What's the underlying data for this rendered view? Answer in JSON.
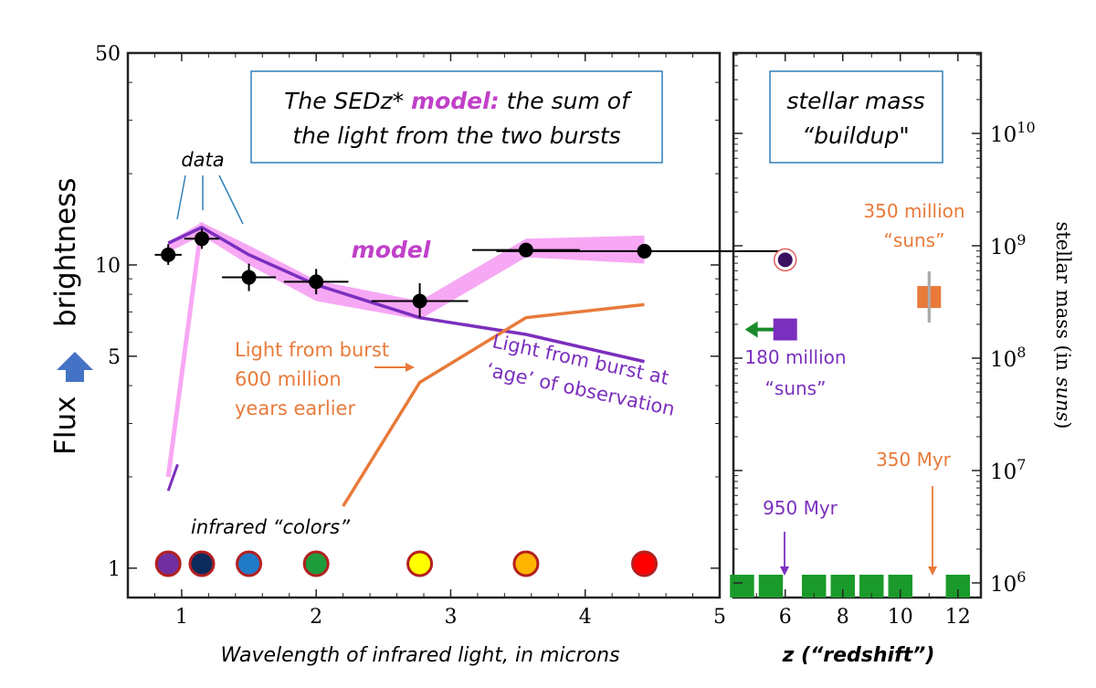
{
  "chart_data": [
    {
      "type": "line",
      "xlabel": "Wavelength of infrared light, in microns",
      "ylabel_left": "Flux",
      "ylabel_right": "brightness",
      "xlim": [
        0.6,
        5.0
      ],
      "ylim": [
        0.8,
        50
      ],
      "yscale": "log",
      "x_ticks": [
        1,
        2,
        3,
        4,
        5
      ],
      "y_ticks": [
        1,
        5,
        10,
        50
      ],
      "title_box_parts": [
        "The SEDz* ",
        "model:",
        " the sum of",
        "the light from the two bursts"
      ],
      "data_points": {
        "name": "data",
        "x": [
          0.9,
          1.15,
          1.5,
          2.0,
          2.77,
          3.56,
          4.44
        ],
        "y": [
          10.8,
          12.2,
          9.1,
          8.8,
          7.6,
          11.2,
          11.1
        ],
        "xerr": [
          0.1,
          0.13,
          0.2,
          0.24,
          0.36,
          0.4,
          1.1
        ],
        "yerr_low": [
          0.8,
          0.9,
          0.9,
          0.8,
          0.9,
          0.5,
          0.6
        ],
        "yerr_high": [
          0.9,
          1.0,
          1.0,
          0.9,
          1.1,
          0.5,
          0.6
        ]
      },
      "model_band": {
        "name": "model",
        "x": [
          0.9,
          1.15,
          1.5,
          2.0,
          2.77,
          3.56,
          4.44
        ],
        "y_low": [
          11.0,
          12.5,
          10.0,
          7.6,
          6.6,
          10.6,
          10.1
        ],
        "y_high": [
          11.9,
          13.8,
          11.6,
          8.9,
          7.6,
          12.2,
          12.5
        ]
      },
      "model_rise": {
        "x": [
          0.9,
          1.15
        ],
        "y": [
          2.0,
          13.8
        ]
      },
      "purple_line": {
        "name": "Light from burst at ‘age’ of observation",
        "x": [
          0.9,
          1.15,
          1.5,
          2.0,
          2.77,
          3.56,
          4.44
        ],
        "y": [
          11.8,
          13.3,
          10.8,
          8.6,
          6.7,
          5.9,
          4.8
        ]
      },
      "purple_tail": {
        "x": [
          0.9,
          0.97
        ],
        "y": [
          1.8,
          2.2
        ]
      },
      "orange_line": {
        "name": "Light from burst 600 million years earlier",
        "x": [
          2.2,
          2.77,
          3.56,
          4.44
        ],
        "y": [
          1.6,
          4.1,
          6.7,
          7.4
        ]
      },
      "colors_label": "infrared “colors”",
      "filter_dots": [
        {
          "x": 0.9,
          "color": "#7030a0"
        },
        {
          "x": 1.15,
          "color": "#0d2a5c"
        },
        {
          "x": 1.5,
          "color": "#1f7ac8"
        },
        {
          "x": 2.0,
          "color": "#1e9c3c"
        },
        {
          "x": 2.77,
          "color": "#ffff00"
        },
        {
          "x": 3.56,
          "color": "#ffb400"
        },
        {
          "x": 4.44,
          "color": "#ff0000"
        }
      ],
      "annotations": {
        "data": "data",
        "model": "model",
        "orange_lines": [
          "Light from burst",
          "600 million",
          "years earlier"
        ],
        "purple_lines": [
          "Light from burst at",
          "‘age’ of observation"
        ]
      },
      "colors": {
        "model": "#c040c8",
        "model_band": "#f7a8f4",
        "purple": "#7b2fbe",
        "orange": "#e87a3a",
        "box_border": "#2e7fb8",
        "arrow": "#4472c4"
      }
    },
    {
      "type": "scatter",
      "xlabel": "z (“redshift”)",
      "ylabel": "stellar mass (in suns)",
      "xlim": [
        4.2,
        12.8
      ],
      "ylim": [
        1000000.0,
        50000000000.0
      ],
      "yscale": "log",
      "x_ticks": [
        6,
        8,
        10,
        12
      ],
      "y_ticks_exponents": [
        6,
        7,
        8,
        9,
        10
      ],
      "title_box": [
        "stellar mass",
        "“buildup\""
      ],
      "points": [
        {
          "name": "purple-square",
          "z": 6.0,
          "mass": 180000000,
          "color": "#7b2fbe"
        },
        {
          "name": "orange-square",
          "z": 11.0,
          "mass": 350000000,
          "color": "#e87a3a"
        },
        {
          "name": "dark-circle",
          "z": 6.0,
          "mass": 750000000,
          "color": "#3a1060"
        }
      ],
      "histogram_bars_z": [
        4.5,
        5.5,
        7.0,
        8.0,
        9.0,
        10.0,
        12.0
      ],
      "labels": {
        "orange_mass": [
          "350 million",
          "“suns”"
        ],
        "purple_mass": [
          "180 million",
          "“suns”"
        ],
        "orange_age": "350 Myr",
        "purple_age": "950 Myr"
      },
      "colors": {
        "green": "#1a9a2a",
        "arrow_green": "#1a8a2a"
      }
    }
  ]
}
